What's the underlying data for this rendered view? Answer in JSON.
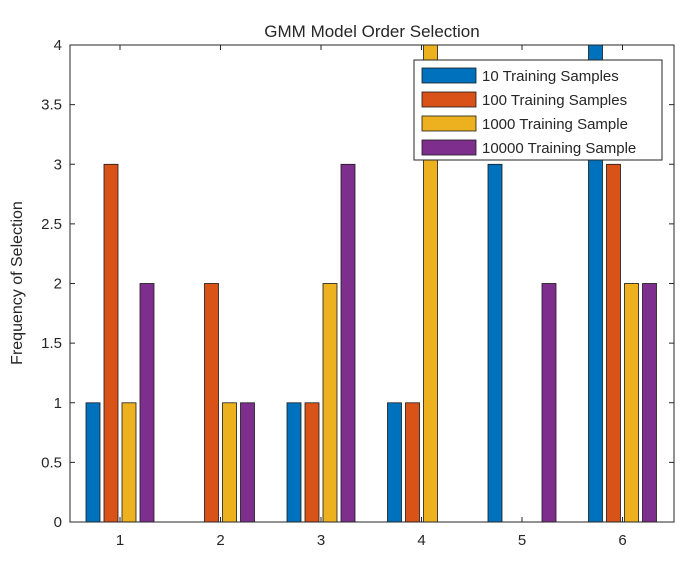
{
  "chart_data": {
    "type": "bar",
    "title": "GMM Model Order Selection",
    "xlabel": "",
    "ylabel": "Frequency of Selection",
    "categories": [
      "1",
      "2",
      "3",
      "4",
      "5",
      "6"
    ],
    "ylim": [
      0,
      4
    ],
    "yticks": [
      "0",
      "0.5",
      "1",
      "1.5",
      "2",
      "2.5",
      "3",
      "3.5",
      "4"
    ],
    "legend_position": "top-right",
    "grid": false,
    "series": [
      {
        "name": "10 Training Samples",
        "color": "#0072BD",
        "values": [
          1,
          0,
          1,
          1,
          3,
          4
        ]
      },
      {
        "name": "100 Training Samples",
        "color": "#D95319",
        "values": [
          3,
          2,
          1,
          1,
          0,
          3
        ]
      },
      {
        "name": "1000 Training Sample",
        "color": "#EDB120",
        "values": [
          1,
          1,
          2,
          4,
          0,
          2
        ]
      },
      {
        "name": "10000 Training Sample",
        "color": "#7E2F8E",
        "values": [
          2,
          1,
          3,
          0,
          2,
          2
        ]
      }
    ]
  }
}
